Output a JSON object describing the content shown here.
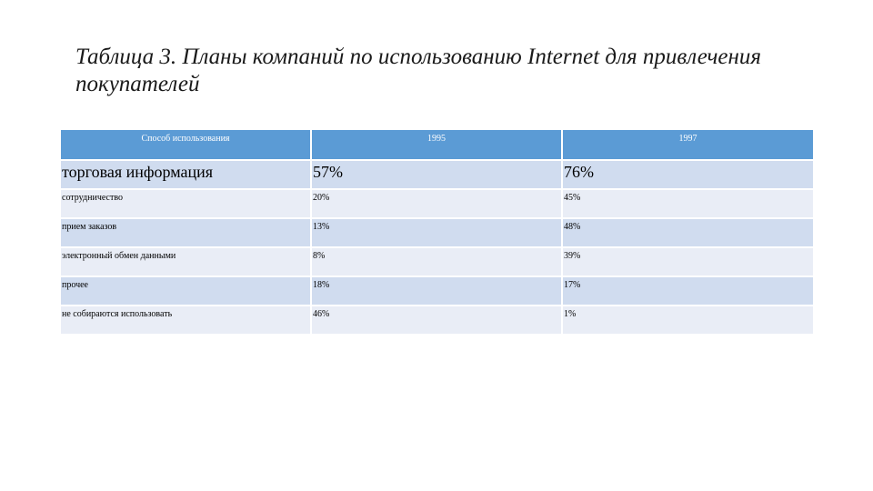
{
  "slide": {
    "title": "Таблица 3. Планы компаний по использованию Internet для привлечения покупателей"
  },
  "table": {
    "headers": [
      "Способ использования",
      "1995",
      "1997"
    ],
    "rows": [
      {
        "method": "торговая информация",
        "y1995": "57%",
        "y1997": "76%"
      },
      {
        "method": "сотрудничество",
        "y1995": "20%",
        "y1997": "45%"
      },
      {
        "method": "прием заказов",
        "y1995": "13%",
        "y1997": "48%"
      },
      {
        "method": "электронный обмен данными",
        "y1995": "8%",
        "y1997": "39%"
      },
      {
        "method": "прочее",
        "y1995": "18%",
        "y1997": "17%"
      },
      {
        "method": "не собираются использовать",
        "y1995": "46%",
        "y1997": "1%"
      }
    ]
  },
  "colors": {
    "header_bg": "#5b9bd5",
    "row_odd_bg": "#d0dcef",
    "row_even_bg": "#e9edf6"
  }
}
